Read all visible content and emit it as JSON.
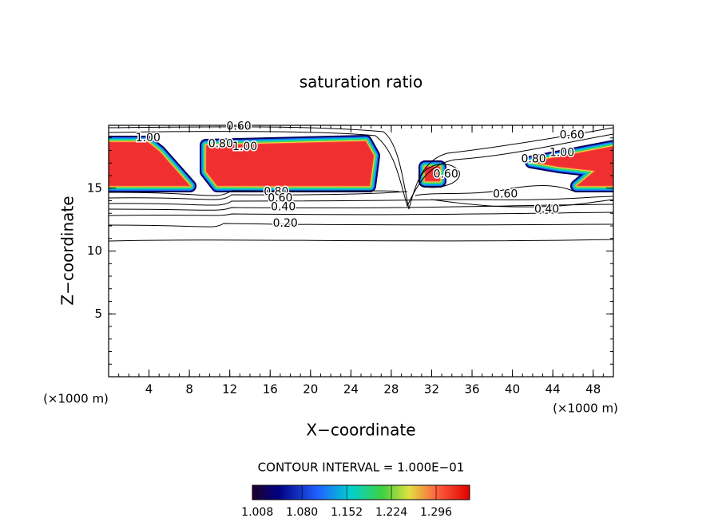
{
  "chart_data": {
    "type": "contour",
    "title": "saturation ratio",
    "xlabel": "X−coordinate",
    "ylabel": "Z−coordinate",
    "x_unit": "(×1000 m)",
    "x_unit_right": "(×1000 m)",
    "xlim": [
      0,
      50
    ],
    "ylim": [
      0,
      20
    ],
    "xticks": [
      4,
      8,
      12,
      16,
      20,
      24,
      28,
      32,
      36,
      40,
      44,
      48
    ],
    "yticks": [
      5,
      10,
      15
    ],
    "contour_interval": "CONTOUR INTERVAL = 1.000E−01",
    "contour_labels": [
      {
        "label": "0.60",
        "x": 12.9,
        "y": 19.9
      },
      {
        "label": "1.00",
        "x": 3.9,
        "y": 19.0
      },
      {
        "label": "0.80",
        "x": 11.1,
        "y": 18.5
      },
      {
        "label": "1.00",
        "x": 13.5,
        "y": 18.3
      },
      {
        "label": "0.60",
        "x": 45.9,
        "y": 19.2
      },
      {
        "label": "0.80",
        "x": 42.1,
        "y": 17.3
      },
      {
        "label": "1.00",
        "x": 44.9,
        "y": 17.8
      },
      {
        "label": "0.60",
        "x": 33.4,
        "y": 16.1
      },
      {
        "label": "0.80",
        "x": 16.6,
        "y": 14.7
      },
      {
        "label": "0.60",
        "x": 17.0,
        "y": 14.2
      },
      {
        "label": "0.40",
        "x": 17.3,
        "y": 13.5
      },
      {
        "label": "0.60",
        "x": 39.3,
        "y": 14.5
      },
      {
        "label": "0.40",
        "x": 43.4,
        "y": 13.3
      },
      {
        "label": "0.20",
        "x": 17.5,
        "y": 12.2
      }
    ],
    "clim": [
      1.0,
      1.35
    ],
    "colorbar_ticks": [
      1.008,
      {
        "value": 1.08,
        "label": "1.080"
      },
      1.152,
      1.224,
      1.296
    ]
  }
}
